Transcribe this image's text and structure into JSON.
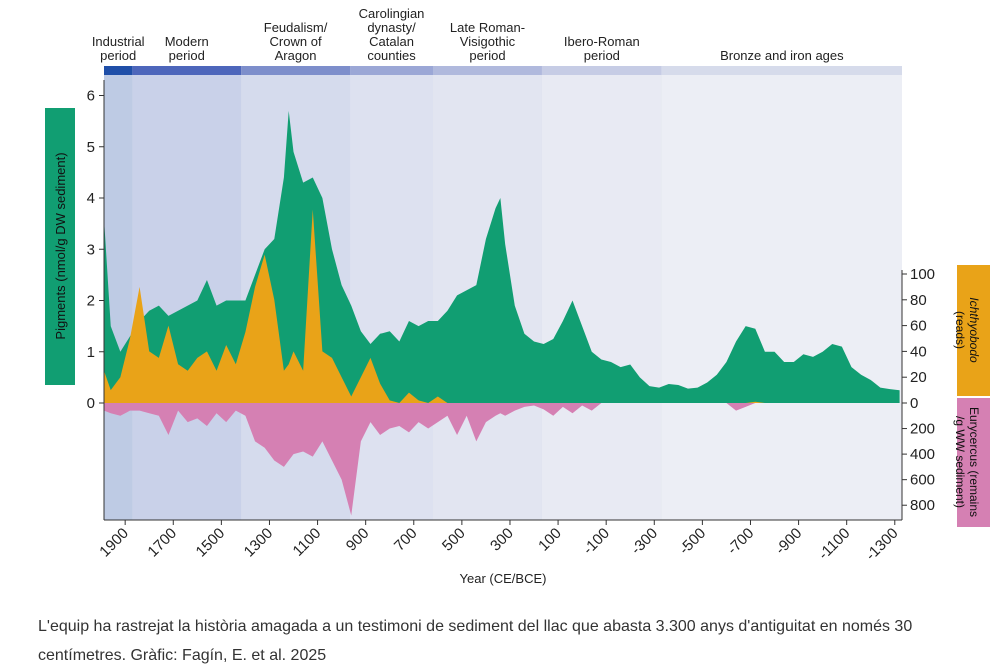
{
  "chart_data": {
    "type": "area",
    "periods": [
      {
        "label": [
          "Industrial",
          "period"
        ],
        "start": 1988,
        "end": 1870,
        "color": "#1f4fa8"
      },
      {
        "label": [
          "Modern",
          "period"
        ],
        "start": 1870,
        "end": 1418,
        "color": "#4d66bb"
      },
      {
        "label": [
          "Feudalism/",
          "Crown of",
          "Aragon"
        ],
        "start": 1418,
        "end": 965,
        "color": "#7d8ecb"
      },
      {
        "label": [
          "Carolingian",
          "dynasty/",
          "Catalan",
          "counties"
        ],
        "start": 965,
        "end": 620,
        "color": "#9ba7d6"
      },
      {
        "label": [
          "Late Roman-",
          "Visigothic",
          "period"
        ],
        "start": 620,
        "end": 167,
        "color": "#b0b9dd"
      },
      {
        "label": [
          "Ibero-Roman",
          "period"
        ],
        "start": 167,
        "end": -331,
        "color": "#c6cce5"
      },
      {
        "label": [
          "Bronze and iron ages"
        ],
        "start": -331,
        "end": -1330,
        "color": "#d6dbeb"
      }
    ],
    "x_label": "Year (CE/BCE)",
    "y_label": "Pigments  (nmol/g DW sediment)",
    "y2_label": [
      "Ichthyobodo",
      "(reads)"
    ],
    "y3_label": [
      "Eurycercus (remains",
      "/g WW sediment)"
    ],
    "xlim": [
      1988,
      -1330
    ],
    "xticks": [
      1900,
      1700,
      1500,
      1300,
      1100,
      900,
      700,
      500,
      300,
      100,
      -100,
      -300,
      -500,
      -700,
      -900,
      -1100,
      -1300
    ],
    "ylim": [
      0,
      6.4
    ],
    "yticks": [
      0,
      1,
      2,
      3,
      4,
      5,
      6
    ],
    "y2lim": [
      0,
      100
    ],
    "y2ticks": [
      0,
      20,
      40,
      60,
      80,
      100
    ],
    "y3lim": [
      0,
      900
    ],
    "y3ticks": [
      200,
      400,
      600,
      800
    ],
    "x": [
      1988,
      1960,
      1920,
      1880,
      1840,
      1800,
      1760,
      1720,
      1680,
      1640,
      1600,
      1560,
      1520,
      1480,
      1440,
      1400,
      1360,
      1320,
      1280,
      1240,
      1220,
      1200,
      1160,
      1120,
      1080,
      1040,
      1000,
      960,
      920,
      880,
      840,
      800,
      760,
      720,
      680,
      640,
      600,
      560,
      520,
      480,
      440,
      400,
      360,
      340,
      320,
      280,
      240,
      200,
      160,
      120,
      80,
      40,
      0,
      -40,
      -80,
      -120,
      -160,
      -200,
      -240,
      -280,
      -320,
      -360,
      -400,
      -440,
      -480,
      -520,
      -560,
      -600,
      -640,
      -680,
      -720,
      -760,
      -800,
      -840,
      -880,
      -920,
      -960,
      -1000,
      -1040,
      -1080,
      -1120,
      -1160,
      -1200,
      -1240,
      -1280,
      -1320
    ],
    "series": [
      {
        "name": "Pigments",
        "color": "#119e72",
        "axis": "y",
        "values": [
          3.6,
          1.5,
          1.0,
          1.3,
          1.6,
          1.8,
          1.9,
          1.7,
          1.8,
          1.9,
          2.0,
          2.4,
          1.9,
          2.0,
          2.0,
          2.0,
          2.5,
          3.0,
          3.2,
          4.4,
          5.7,
          4.9,
          4.3,
          4.4,
          4.0,
          3.0,
          2.3,
          1.9,
          1.4,
          1.15,
          1.35,
          1.4,
          1.2,
          1.6,
          1.5,
          1.6,
          1.6,
          1.8,
          2.1,
          2.2,
          2.3,
          3.2,
          3.8,
          4.0,
          3.1,
          1.9,
          1.35,
          1.2,
          1.15,
          1.25,
          1.6,
          2.0,
          1.5,
          1.0,
          0.85,
          0.8,
          0.7,
          0.75,
          0.5,
          0.33,
          0.3,
          0.37,
          0.35,
          0.28,
          0.3,
          0.4,
          0.55,
          0.8,
          1.2,
          1.5,
          1.45,
          1.0,
          1.0,
          0.8,
          0.8,
          0.95,
          0.9,
          1.0,
          1.15,
          1.1,
          0.7,
          0.55,
          0.45,
          0.3,
          0.27,
          0.25
        ]
      },
      {
        "name": "Ichthyobodo",
        "color": "#e9a318",
        "axis": "y2",
        "values": [
          25,
          10,
          20,
          50,
          90,
          40,
          35,
          60,
          30,
          25,
          35,
          40,
          25,
          45,
          30,
          55,
          90,
          115,
          80,
          25,
          30,
          40,
          25,
          150,
          40,
          35,
          20,
          5,
          20,
          35,
          15,
          2,
          0,
          8,
          2,
          0,
          5,
          0,
          0,
          0,
          0,
          0,
          0,
          0,
          0,
          0,
          0,
          0,
          0,
          0,
          0,
          0,
          0,
          0,
          0,
          0,
          0,
          0,
          0,
          0,
          0,
          0,
          0,
          0,
          0,
          0,
          0,
          0,
          0,
          0,
          1,
          0,
          0,
          0,
          0,
          0,
          0,
          0,
          0,
          0,
          0,
          0,
          0,
          0,
          0,
          0
        ]
      },
      {
        "name": "Eurycercus",
        "color": "#d580b3",
        "axis": "y3",
        "values": [
          60,
          80,
          100,
          60,
          60,
          80,
          100,
          250,
          60,
          150,
          120,
          180,
          80,
          150,
          60,
          100,
          300,
          350,
          450,
          500,
          450,
          400,
          380,
          420,
          300,
          450,
          600,
          880,
          300,
          150,
          250,
          200,
          180,
          230,
          150,
          200,
          150,
          100,
          250,
          100,
          300,
          150,
          100,
          80,
          100,
          60,
          30,
          20,
          50,
          100,
          30,
          80,
          20,
          60,
          0,
          0,
          0,
          0,
          0,
          0,
          0,
          0,
          0,
          0,
          0,
          0,
          0,
          0,
          60,
          30,
          0,
          0,
          0,
          0,
          0,
          0,
          0,
          0,
          0,
          0,
          0,
          0,
          0,
          0,
          0,
          0
        ]
      }
    ],
    "caption": "L'equip ha rastrejat la història amagada a un testimoni de sediment del llac que abasta 3.300 anys d'antiguitat en només 30 centímetres. Gràfic: Fagín, E. et al. 2025"
  }
}
